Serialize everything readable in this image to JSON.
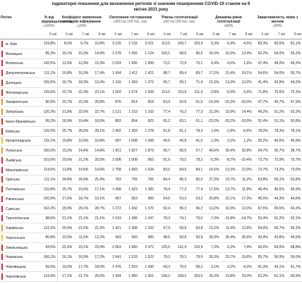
{
  "title": "Індикаторні показники для визначення регіонів зі значним поширенням COVID-19 станом на 9 квітня 2021 року",
  "columns": [
    {
      "label": "Регіон"
    },
    {
      "label": "% від відпрацьованого",
      "threshold": "≥100%",
      "dates": [
        "8 кві"
      ]
    },
    {
      "label": "Коефіцієнт виявлення випадків інфікування",
      "threshold": "≤20%",
      "dates": [
        "6 кві",
        "7 кві",
        "8 кві"
      ]
    },
    {
      "label": "Охоплення тестуванням",
      "threshold": "≥300 на 100 тис. нас.",
      "dates": [
        "6 кві",
        "7 кві",
        "8 кві"
      ]
    },
    {
      "label": "Рівень госпіталізації",
      "threshold": "≤60 на 100 тис. нас.",
      "dates": [
        "6 кві",
        "7 кві",
        "8 кві"
      ]
    },
    {
      "label": "Динаміка рівня госпіталізації",
      "threshold": "≤50%",
      "dates": [
        "6 кві",
        "7 кві",
        "8 кві"
      ]
    },
    {
      "label": "Завантаженість ліжок з киснем",
      "threshold": "≤50%",
      "dates": [
        "6 кві",
        "7 кві",
        "8 кві"
      ]
    }
  ],
  "rows": [
    {
      "region": "м. Київ",
      "zone_color": "#d62728",
      "cells": [
        "119,8%",
        "8,6%",
        "9,7%",
        "10,8%",
        "3 125",
        "2 132",
        "3 021",
        "113,5",
        "109,7",
        "103,9",
        "6,3%",
        "-0,4%",
        "-4,5%",
        "83,3%",
        "83,6%",
        "81,1%"
      ]
    },
    {
      "region": "Вінницька",
      "zone_color": "#d62728",
      "cells": [
        "85,3%",
        "16,1%",
        "15,3%",
        "14,9%",
        "1 578",
        "1 556",
        "1 124",
        "100,1",
        "98,5",
        "96,5",
        "24,3%",
        "16,5%",
        "13,4%",
        "62,2%",
        "59,0%",
        "55,2%"
      ]
    },
    {
      "region": "Волинська",
      "zone_color": "#d62728",
      "cells": [
        "142,5%",
        "12,6%",
        "12,9%",
        "15,3%",
        "2 024",
        "1 995",
        "1 899",
        "73,2",
        "72,9",
        "70,1",
        "6,4%",
        "6,5%",
        "1,6%",
        "47,4%",
        "49,0%",
        "49,2%"
      ]
    },
    {
      "region": "Дніпропетровська",
      "zone_color": "#d62728",
      "cells": [
        "111,1%",
        "16,8%",
        "16,3%",
        "17,4%",
        "1 434",
        "1 411",
        "1 421",
        "88,7",
        "89,4",
        "89,7",
        "17,2%",
        "15,4%",
        "19,1%",
        "54,6%",
        "54,0%",
        "55,7%"
      ]
    },
    {
      "region": "Донецька",
      "zone_color": "#d62728",
      "cells": [
        "155,5%",
        "16,7%",
        "18,3%",
        "19,3%",
        "1 316",
        "1 369",
        "1 372",
        "65,7",
        "69,1",
        "71,4",
        "12,3%",
        "13,3%",
        "12,6%",
        "41,4%",
        "42,9%",
        "44,2%"
      ]
    },
    {
      "region": "Житомирська",
      "zone_color": "#d62728",
      "cells": [
        "139,6%",
        "22,7%",
        "22,3%",
        "22,1%",
        "1 602",
        "1 574",
        "1 509",
        "113,0",
        "110,9",
        "111,3",
        "-2,8%",
        "-6,6%",
        "5,6%",
        "71,8%",
        "70,5%",
        "72,3%"
      ]
    },
    {
      "region": "Закарпатська",
      "zone_color": "#f28e2b",
      "cells": [
        "90,9%",
        "23,7%",
        "22,3%",
        "20,8%",
        "876",
        "814",
        "818",
        "63,9",
        "62,8",
        "61,5",
        "-14,3%",
        "-15,2%",
        "-16,0%",
        "47,7%",
        "45,7%",
        "47,9%"
      ]
    },
    {
      "region": "Запорізька",
      "zone_color": "#f28e2b",
      "cells": [
        "120,3%",
        "21,8%",
        "22,6%",
        "22,7%",
        "1 121",
        "1 153",
        "1 163",
        "77,4",
        "76,2",
        "77,3",
        "21,3%",
        "15,9%",
        "14,4%",
        "49,2%",
        "51,2%",
        "52,2%"
      ]
    },
    {
      "region": "Івано-Франківська",
      "zone_color": "#d62728",
      "cells": [
        "95,2%",
        "18,9%",
        "19,4%",
        "18,9%",
        "893",
        "854",
        "822",
        "65,2",
        "63,1",
        "61,1",
        "-23,2%",
        "-20,2%",
        "-19,9%",
        "51,4%",
        "51,1%",
        "50,8%"
      ]
    },
    {
      "region": "Київська",
      "zone_color": "#d62728",
      "cells": [
        "126,0%",
        "25,7%",
        "26,5%",
        "28,1%",
        "1 402",
        "1 369",
        "1 278",
        "81,8",
        "81,1",
        "78,3",
        "1,6%",
        "-1,8%",
        "-6,5%",
        "78,0%",
        "78,3%",
        "78,1%"
      ]
    },
    {
      "region": "Кіровоградська",
      "zone_color": "#f2c12e",
      "cells": [
        "115,1%",
        "10,8%",
        "10,9%",
        "10,8%",
        "997",
        "1 008",
        "1 068",
        "40,6",
        "40,8",
        "41,0",
        "1,3%",
        "0,2%",
        "1,2%",
        "39,2%",
        "40,5%",
        "40,9%"
      ]
    },
    {
      "region": "Луганська",
      "zone_color": "#f28e2b",
      "cells": [
        "150,0%",
        "15,2%",
        "14,8%",
        "14,8%",
        "1 811",
        "1 827",
        "1 873",
        "56,7",
        "56,5",
        "57,7",
        "40,6%",
        "39,4%",
        "32,8%",
        "34,7%",
        "36,7%",
        "38,7%"
      ]
    },
    {
      "region": "Львівська",
      "zone_color": "#d62728",
      "cells": [
        "103,6%",
        "20,6%",
        "21,2%",
        "20,5%",
        "1 008",
        "1 008",
        "963",
        "81,9",
        "79,5",
        "78,2",
        "-5,3%",
        "-8,7%",
        "-10,4%",
        "73,7%",
        "72,9%",
        "73,7%"
      ]
    },
    {
      "region": "Миколаївська",
      "zone_color": "#d62728",
      "cells": [
        "114,5%",
        "13,8%",
        "14,5%",
        "14,6%",
        "1 758",
        "1 683",
        "1 634",
        "83,0",
        "84,9",
        "84,1",
        "16,5%",
        "13,3%",
        "12,0%",
        "72,7%",
        "73,2%",
        "73,0%"
      ]
    },
    {
      "region": "Одеська",
      "zone_color": "#d62728",
      "cells": [
        "111,1%",
        "24,8%",
        "24,9%",
        "25,4%",
        "763",
        "755",
        "756",
        "84,4",
        "85,3",
        "82,0",
        "27,3%",
        "19,7%",
        "11,2%",
        "53,8%",
        "55,1%",
        "53,8%"
      ]
    },
    {
      "region": "Полтавська",
      "zone_color": "#d62728",
      "cells": [
        "110,8%",
        "15,7%",
        "15,6%",
        "17,1%",
        "1 408",
        "1 423",
        "1 382",
        "78,4",
        "77,3",
        "77,4",
        "17,6%",
        "13,7%",
        "11,8%",
        "46,4%",
        "46,5%",
        "46,9%"
      ]
    },
    {
      "region": "Рівненська",
      "zone_color": "#d62728",
      "cells": [
        "100,9%",
        "17,0%",
        "18,7%",
        "19,1%",
        "967",
        "953",
        "950",
        "54,6",
        "53,3",
        "53,2",
        "25,8%",
        "22,1%",
        "17,3%",
        "45,5%",
        "44,3%",
        "44,6%"
      ]
    },
    {
      "region": "Сумська",
      "zone_color": "#d62728",
      "cells": [
        "162,2%",
        "29,9%",
        "29,1%",
        "28,7%",
        "1 372",
        "1 342",
        "1 370",
        "92,4",
        "95,3",
        "96,2",
        "13,2%",
        "10,3%",
        "12,0%",
        "67,5%",
        "65,6%",
        "64,2%"
      ]
    },
    {
      "region": "Тернопільська",
      "zone_color": "#d62728",
      "cells": [
        "98,6%",
        "21,1%",
        "21,1%",
        "21,1%",
        "1 519",
        "1 396",
        "1 347",
        "78,3",
        "74,1",
        "70,0",
        "-7,3%",
        "-11,8%",
        "-14,7%",
        "53,4%",
        "51,2%",
        "52,1%"
      ]
    },
    {
      "region": "Харківська",
      "zone_color": "#f28e2b",
      "cells": [
        "122,2%",
        "20,4%",
        "21,5%",
        "21,2%",
        "1 421",
        "1 308",
        "1 232",
        "57,9",
        "58,8",
        "60,8",
        "12,2%",
        "11,4%",
        "12,8%",
        "54,9%",
        "56,7%",
        "56,2%"
      ]
    },
    {
      "region": "Херсонська",
      "zone_color": "#f2c12e",
      "cells": [
        "80,8%",
        "10,5%",
        "11,6%",
        "12,2%",
        "493",
        "560",
        "585",
        "48,6",
        "50,8",
        "50,9",
        "30,9%",
        "35,4%",
        "36,6%",
        "43,4%",
        "42,8%",
        "44,5%"
      ]
    },
    {
      "region": "Хмельницька",
      "zone_color": "#d62728",
      "cells": [
        "94,5%",
        "22,4%",
        "23,1%",
        "23,4%",
        "2 063",
        "1 960",
        "2 472",
        "125,0",
        "131,4",
        "133,9",
        "7,2%",
        "6,3%",
        "7,4%",
        "69,6%",
        "69,0%",
        "68,8%"
      ]
    },
    {
      "region": "Черкаська",
      "zone_color": "#d62728",
      "cells": [
        "166,1%",
        "16,1%",
        "16,9%",
        "17,2%",
        "1 641",
        "1 533",
        "1 522",
        "79,3",
        "78,3",
        "79,9",
        "26,3%",
        "23,7%",
        "19,6%",
        "55,7%",
        "56,9%",
        "59,0%"
      ]
    },
    {
      "region": "Чернівецька",
      "zone_color": "#d62728",
      "cells": [
        "99,6%",
        "19,0%",
        "17,7%",
        "18,0%",
        "1 476",
        "1 503",
        "1 436",
        "69,3",
        "70,5",
        "68,2",
        "3,1%",
        "0,2%",
        "-4,3%",
        "41,3%",
        "43,1%",
        "41,7%"
      ]
    },
    {
      "region": "Чернігівська",
      "zone_color": "#d62728",
      "cells": [
        "113,9%",
        "17,1%",
        "21,7%",
        "20,0%",
        "1 434",
        "1 450",
        "1 561",
        "108,2",
        "108,2",
        "103,0",
        "26,3%",
        "13,8%",
        "10,0%",
        "62,2%",
        "61,1%",
        "60,9%"
      ]
    }
  ]
}
